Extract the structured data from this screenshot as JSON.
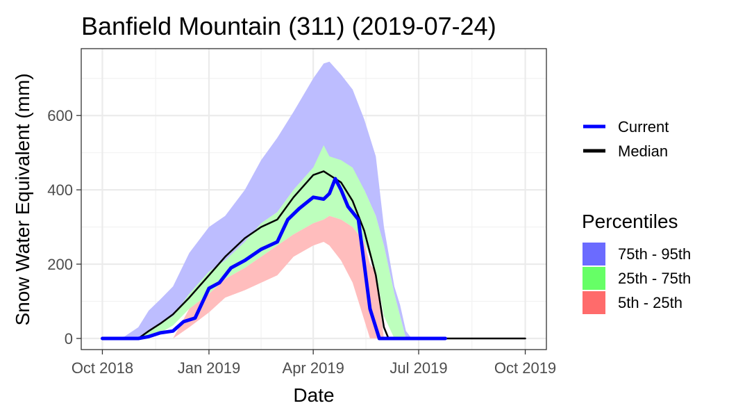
{
  "chart_data": {
    "type": "area",
    "title": "Banfield Mountain (311) (2019-07-24)",
    "xlabel": "Date",
    "ylabel": "Snow Water Equivalent (mm)",
    "xlim": [
      "2018-10-01",
      "2019-10-01"
    ],
    "ylim": [
      -30,
      780
    ],
    "x_ticks": [
      {
        "date": "2018-10-01",
        "label": "Oct 2018"
      },
      {
        "date": "2019-01-01",
        "label": "Jan 2019"
      },
      {
        "date": "2019-04-01",
        "label": "Apr 2019"
      },
      {
        "date": "2019-07-01",
        "label": "Jul 2019"
      },
      {
        "date": "2019-10-01",
        "label": "Oct 2019"
      }
    ],
    "y_ticks": [
      0,
      200,
      400,
      600
    ],
    "grid": true,
    "legend_position": "right",
    "lines_legend": [
      {
        "name": "Current",
        "color": "#0000ff"
      },
      {
        "name": "Median",
        "color": "#000000"
      }
    ],
    "percentiles_title": "Percentiles",
    "percentile_legend": [
      {
        "name": "75th - 95th",
        "color": "#6b6bff"
      },
      {
        "name": "25th - 75th",
        "color": "#66ff66"
      },
      {
        "name": "5th - 25th",
        "color": "#ff6b6b"
      }
    ],
    "bands": [
      {
        "name": "75th - 95th",
        "color": "#bdbdff",
        "points": [
          [
            "2018-10-01",
            0,
            0
          ],
          [
            "2018-10-20",
            0,
            5
          ],
          [
            "2018-11-01",
            0,
            30
          ],
          [
            "2018-11-10",
            20,
            75
          ],
          [
            "2018-11-20",
            40,
            105
          ],
          [
            "2018-12-01",
            60,
            140
          ],
          [
            "2018-12-15",
            120,
            230
          ],
          [
            "2019-01-01",
            180,
            300
          ],
          [
            "2019-01-15",
            210,
            330
          ],
          [
            "2019-02-01",
            260,
            400
          ],
          [
            "2019-02-15",
            310,
            480
          ],
          [
            "2019-03-01",
            340,
            540
          ],
          [
            "2019-03-15",
            400,
            610
          ],
          [
            "2019-04-01",
            460,
            700
          ],
          [
            "2019-04-10",
            480,
            740
          ],
          [
            "2019-04-15",
            490,
            745
          ],
          [
            "2019-04-25",
            470,
            710
          ],
          [
            "2019-05-05",
            440,
            670
          ],
          [
            "2019-05-15",
            400,
            590
          ],
          [
            "2019-05-25",
            330,
            490
          ],
          [
            "2019-06-01",
            250,
            300
          ],
          [
            "2019-06-10",
            120,
            140
          ],
          [
            "2019-06-15",
            60,
            90
          ],
          [
            "2019-06-20",
            0,
            20
          ],
          [
            "2019-06-25",
            0,
            0
          ]
        ]
      },
      {
        "name": "25th - 75th",
        "color": "#bdffbd",
        "points": [
          [
            "2018-10-20",
            0,
            0
          ],
          [
            "2018-11-01",
            0,
            0
          ],
          [
            "2018-11-10",
            5,
            20
          ],
          [
            "2018-11-20",
            15,
            40
          ],
          [
            "2018-12-01",
            35,
            60
          ],
          [
            "2018-12-15",
            80,
            120
          ],
          [
            "2019-01-01",
            120,
            180
          ],
          [
            "2019-01-15",
            160,
            210
          ],
          [
            "2019-02-01",
            190,
            260
          ],
          [
            "2019-02-15",
            220,
            310
          ],
          [
            "2019-03-01",
            250,
            340
          ],
          [
            "2019-03-15",
            280,
            400
          ],
          [
            "2019-04-01",
            310,
            460
          ],
          [
            "2019-04-10",
            320,
            520
          ],
          [
            "2019-04-15",
            330,
            490
          ],
          [
            "2019-04-25",
            320,
            480
          ],
          [
            "2019-05-05",
            300,
            460
          ],
          [
            "2019-05-15",
            260,
            400
          ],
          [
            "2019-05-25",
            180,
            330
          ],
          [
            "2019-06-01",
            60,
            250
          ],
          [
            "2019-06-10",
            0,
            120
          ],
          [
            "2019-06-15",
            0,
            60
          ],
          [
            "2019-06-20",
            0,
            0
          ]
        ]
      },
      {
        "name": "5th - 25th",
        "color": "#ffbdbd",
        "points": [
          [
            "2018-12-01",
            0,
            0
          ],
          [
            "2018-12-15",
            30,
            80
          ],
          [
            "2019-01-01",
            70,
            120
          ],
          [
            "2019-01-15",
            110,
            160
          ],
          [
            "2019-02-01",
            130,
            190
          ],
          [
            "2019-02-15",
            150,
            220
          ],
          [
            "2019-03-01",
            170,
            250
          ],
          [
            "2019-03-15",
            220,
            280
          ],
          [
            "2019-04-01",
            250,
            310
          ],
          [
            "2019-04-10",
            260,
            320
          ],
          [
            "2019-04-15",
            250,
            330
          ],
          [
            "2019-04-25",
            210,
            320
          ],
          [
            "2019-05-05",
            150,
            300
          ],
          [
            "2019-05-15",
            50,
            260
          ],
          [
            "2019-05-20",
            0,
            200
          ],
          [
            "2019-05-25",
            0,
            180
          ],
          [
            "2019-06-01",
            0,
            0
          ]
        ]
      }
    ],
    "series": [
      {
        "name": "Median",
        "color": "#000000",
        "points": [
          [
            "2018-10-01",
            0
          ],
          [
            "2018-11-01",
            0
          ],
          [
            "2018-11-10",
            20
          ],
          [
            "2018-11-20",
            40
          ],
          [
            "2018-12-01",
            65
          ],
          [
            "2018-12-15",
            110
          ],
          [
            "2019-01-01",
            170
          ],
          [
            "2019-01-15",
            220
          ],
          [
            "2019-02-01",
            270
          ],
          [
            "2019-02-15",
            300
          ],
          [
            "2019-03-01",
            320
          ],
          [
            "2019-03-15",
            380
          ],
          [
            "2019-04-01",
            440
          ],
          [
            "2019-04-10",
            450
          ],
          [
            "2019-04-15",
            440
          ],
          [
            "2019-04-25",
            420
          ],
          [
            "2019-05-05",
            370
          ],
          [
            "2019-05-15",
            290
          ],
          [
            "2019-05-25",
            170
          ],
          [
            "2019-06-01",
            30
          ],
          [
            "2019-06-05",
            0
          ],
          [
            "2019-10-01",
            0
          ]
        ]
      },
      {
        "name": "Current",
        "color": "#0000ff",
        "points": [
          [
            "2018-10-01",
            0
          ],
          [
            "2018-11-01",
            0
          ],
          [
            "2018-11-10",
            5
          ],
          [
            "2018-11-20",
            15
          ],
          [
            "2018-12-01",
            20
          ],
          [
            "2018-12-10",
            45
          ],
          [
            "2018-12-20",
            55
          ],
          [
            "2019-01-01",
            135
          ],
          [
            "2019-01-10",
            150
          ],
          [
            "2019-01-20",
            190
          ],
          [
            "2019-02-01",
            210
          ],
          [
            "2019-02-15",
            240
          ],
          [
            "2019-03-01",
            260
          ],
          [
            "2019-03-10",
            320
          ],
          [
            "2019-03-20",
            350
          ],
          [
            "2019-04-01",
            380
          ],
          [
            "2019-04-10",
            375
          ],
          [
            "2019-04-15",
            390
          ],
          [
            "2019-04-20",
            430
          ],
          [
            "2019-04-25",
            400
          ],
          [
            "2019-05-01",
            355
          ],
          [
            "2019-05-10",
            320
          ],
          [
            "2019-05-15",
            200
          ],
          [
            "2019-05-20",
            80
          ],
          [
            "2019-05-28",
            0
          ],
          [
            "2019-07-24",
            0
          ]
        ]
      }
    ]
  }
}
